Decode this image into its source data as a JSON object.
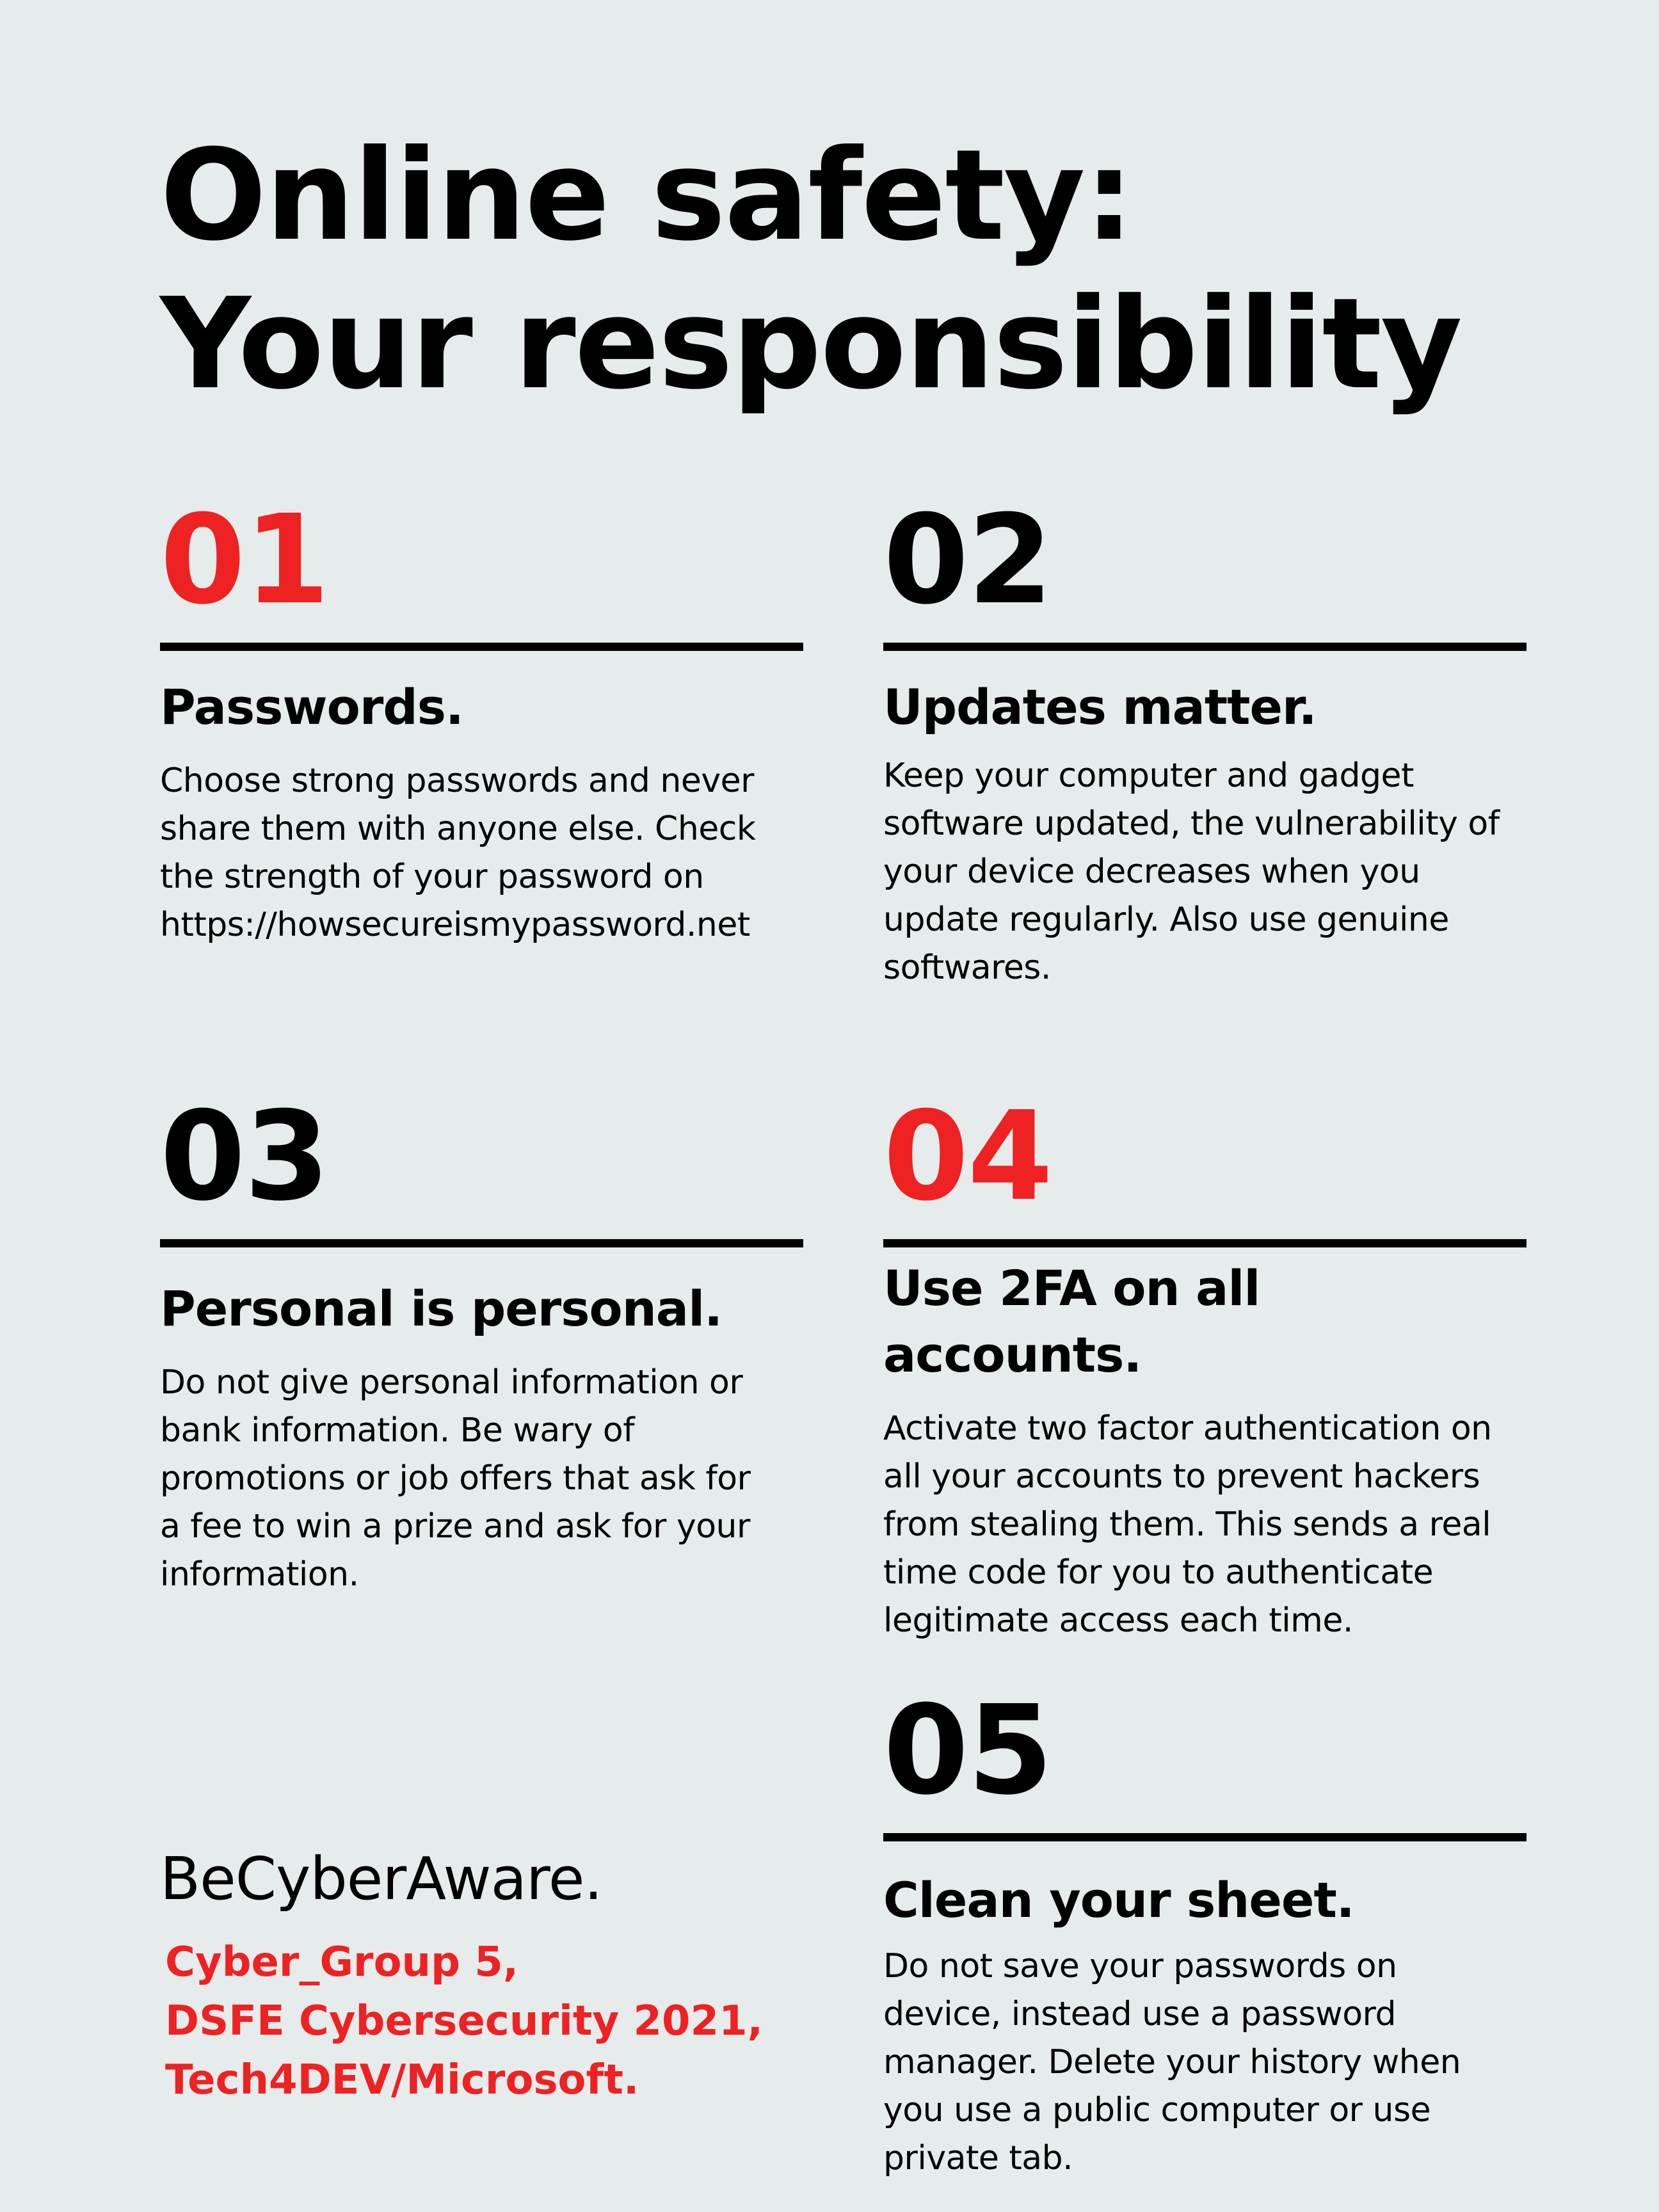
{
  "title": {
    "lines": [
      "Online safety:",
      "Your responsibility"
    ]
  },
  "sections": [
    {
      "number": "01",
      "heading": "Passwords.",
      "body": [
        "Choose strong passwords and never",
        "share them with anyone else. Check",
        "the strength of your password on",
        "https://howsecureismypassword.net"
      ]
    },
    {
      "number": "02",
      "heading": "Updates matter.",
      "body": [
        "Keep your computer and gadget",
        "software updated, the vulnerability of",
        "your device decreases when you",
        "update regularly. Also use genuine",
        "softwares."
      ]
    },
    {
      "number": "03",
      "heading": "Personal is personal.",
      "body": [
        "Do not give personal information or",
        "bank information. Be wary of",
        "promotions or job offers that ask for",
        "a fee to win a prize and ask for your",
        "information."
      ]
    },
    {
      "number": "04",
      "heading_lines": [
        "Use 2FA on all",
        "accounts."
      ],
      "body": [
        "Activate two factor authentication on",
        "all your accounts to prevent hackers",
        "from stealing them. This sends a real",
        "time code for you to authenticate",
        "legitimate access each time."
      ]
    },
    {
      "number": "05",
      "heading": "Clean your sheet.",
      "body": [
        "Do not save your passwords on",
        "device, instead use a password",
        "manager. Delete your history when",
        "you use a public computer or use",
        "private tab."
      ]
    }
  ],
  "brand": "BeCyberAware.",
  "credits": [
    "Cyber_Group 5,",
    "DSFE Cybersecurity 2021,",
    "Tech4DEV/Microsoft."
  ],
  "colors": {
    "background": "#e6ecec",
    "text": "#000000",
    "accent": "#ee2222"
  }
}
